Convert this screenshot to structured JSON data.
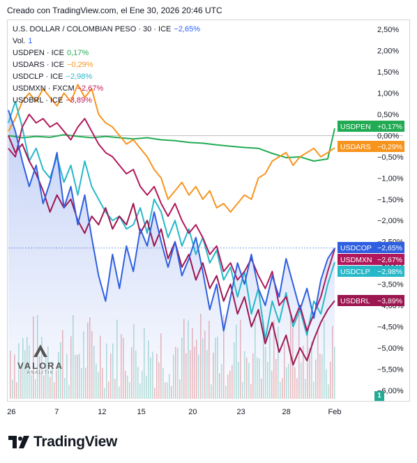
{
  "header": {
    "caption": "Creado con TradingView.com, el Ene 30, 2026 20:46 UTC"
  },
  "legend": {
    "main_symbol": "U.S. DOLLAR / COLOMBIAN PESO · 30 · ICE",
    "main_change": "−2,65%",
    "vol_label": "Vol.",
    "vol_value": "1",
    "rows": [
      {
        "symbol": "USDPEN · ICE",
        "change": "0,17%",
        "color": "#22ab53"
      },
      {
        "symbol": "USDARS · ICE",
        "change": "−0,29%",
        "color": "#f7941d"
      },
      {
        "symbol": "USDCLP · ICE",
        "change": "−2,98%",
        "color": "#26b8c9"
      },
      {
        "symbol": "USDMXN · FXCM",
        "change": "−2,67%",
        "color": "#c2185b"
      },
      {
        "symbol": "USDBRL · ICE",
        "change": "−3,89%",
        "color": "#c2185b"
      }
    ]
  },
  "watermark": {
    "name": "VALORA",
    "sub": "ANALITIK"
  },
  "footer": {
    "brand": "TradingView"
  },
  "volume_badge": "1",
  "chart_data": {
    "type": "line",
    "x_ticks": [
      "26",
      "7",
      "12",
      "15",
      "20",
      "23",
      "28",
      "Feb"
    ],
    "y_ticks": [
      "2,50%",
      "2,00%",
      "1,50%",
      "1,00%",
      "0,50%",
      "0,00%",
      "−0,50%",
      "−1,00%",
      "−1,50%",
      "−2,00%",
      "−2,50%",
      "−3,00%",
      "−3,50%",
      "−4,00%",
      "−4,50%",
      "−5,00%",
      "−5,50%",
      "−6,00%"
    ],
    "ylim": [
      -6.2,
      2.7
    ],
    "x_range": [
      0,
      47
    ],
    "grid": false,
    "legend_position": "top-left",
    "series": [
      {
        "name": "USDPEN",
        "color": "#22ab53",
        "label": "USDPEN",
        "label_value": "+0,17%",
        "x": [
          0,
          2,
          4,
          6,
          8,
          10,
          12,
          14,
          16,
          18,
          20,
          22,
          24,
          26,
          28,
          30,
          32,
          34,
          36,
          38,
          40,
          42,
          44,
          46,
          47
        ],
        "y": [
          0.0,
          -0.05,
          -0.02,
          -0.04,
          0.02,
          -0.02,
          -0.05,
          -0.02,
          -0.05,
          -0.08,
          -0.05,
          -0.1,
          -0.12,
          -0.16,
          -0.18,
          -0.22,
          -0.25,
          -0.28,
          -0.3,
          -0.42,
          -0.52,
          -0.5,
          -0.6,
          -0.55,
          0.17
        ]
      },
      {
        "name": "USDARS",
        "color": "#f7941d",
        "label": "USDARS",
        "label_value": "−0,29%",
        "x": [
          0,
          1,
          2,
          3,
          4,
          5,
          6,
          7,
          8,
          9,
          10,
          11,
          12,
          13,
          14,
          15,
          16,
          17,
          18,
          19,
          20,
          21,
          22,
          23,
          24,
          25,
          26,
          27,
          28,
          29,
          30,
          31,
          32,
          33,
          34,
          35,
          36,
          37,
          38,
          39,
          40,
          41,
          42,
          43,
          44,
          45,
          46,
          47
        ],
        "y": [
          0.1,
          0.4,
          0.8,
          1.0,
          0.8,
          1.1,
          0.9,
          0.7,
          1.0,
          0.8,
          1.2,
          0.9,
          1.1,
          0.5,
          0.3,
          0.2,
          0.0,
          -0.2,
          -0.1,
          -0.3,
          -0.5,
          -0.8,
          -1.0,
          -1.5,
          -1.3,
          -1.1,
          -1.4,
          -1.2,
          -1.5,
          -1.3,
          -1.7,
          -1.6,
          -1.8,
          -1.6,
          -1.4,
          -1.5,
          -1.0,
          -0.9,
          -0.6,
          -0.5,
          -0.4,
          -0.7,
          -0.5,
          -0.4,
          -0.3,
          -0.5,
          -0.4,
          -0.29
        ]
      },
      {
        "name": "USDCLP",
        "color": "#26b8c9",
        "label": "USDCLP",
        "label_value": "−2,98%",
        "x": [
          0,
          1,
          2,
          3,
          4,
          5,
          6,
          7,
          8,
          9,
          10,
          11,
          12,
          13,
          14,
          15,
          16,
          17,
          18,
          19,
          20,
          21,
          22,
          23,
          24,
          25,
          26,
          27,
          28,
          29,
          30,
          31,
          32,
          33,
          34,
          35,
          36,
          37,
          38,
          39,
          40,
          41,
          42,
          43,
          44,
          45,
          46,
          47
        ],
        "y": [
          0.3,
          0.8,
          0.2,
          -0.6,
          -0.3,
          -0.8,
          -1.0,
          -0.5,
          -1.1,
          -0.7,
          -1.4,
          -0.6,
          -1.2,
          -1.5,
          -1.8,
          -2.0,
          -1.9,
          -2.2,
          -2.1,
          -1.7,
          -2.3,
          -1.5,
          -1.8,
          -2.4,
          -2.0,
          -2.6,
          -2.2,
          -2.8,
          -2.4,
          -3.0,
          -2.7,
          -3.4,
          -3.1,
          -3.8,
          -3.2,
          -4.2,
          -3.6,
          -4.8,
          -3.9,
          -4.4,
          -3.7,
          -4.5,
          -4.1,
          -4.7,
          -3.9,
          -4.2,
          -3.5,
          -2.98
        ]
      },
      {
        "name": "USDMXN",
        "color": "#b0185b",
        "label": "USDMXN",
        "label_value": "−2,67%",
        "x": [
          0,
          1,
          2,
          3,
          4,
          5,
          6,
          7,
          8,
          9,
          10,
          11,
          12,
          13,
          14,
          15,
          16,
          17,
          18,
          19,
          20,
          21,
          22,
          23,
          24,
          25,
          26,
          27,
          28,
          29,
          30,
          31,
          32,
          33,
          34,
          35,
          36,
          37,
          38,
          39,
          40,
          41,
          42,
          43,
          44,
          45,
          46,
          47
        ],
        "y": [
          -0.3,
          -0.5,
          0.2,
          0.5,
          0.3,
          0.4,
          0.2,
          0.3,
          0.1,
          -0.1,
          0.2,
          0.4,
          0.1,
          -0.2,
          -0.4,
          -0.5,
          -0.7,
          -0.9,
          -0.8,
          -1.2,
          -1.4,
          -1.2,
          -1.6,
          -1.9,
          -1.6,
          -2.0,
          -2.3,
          -2.1,
          -2.4,
          -2.8,
          -2.6,
          -3.2,
          -3.0,
          -3.4,
          -3.2,
          -2.9,
          -3.3,
          -3.6,
          -3.2,
          -4.0,
          -3.8,
          -4.4,
          -4.0,
          -4.6,
          -4.2,
          -3.8,
          -3.2,
          -2.67
        ]
      },
      {
        "name": "USDBRL",
        "color": "#9c1650",
        "label": "USDBRL",
        "label_value": "−3,89%",
        "x": [
          0,
          1,
          2,
          3,
          4,
          5,
          6,
          7,
          8,
          9,
          10,
          11,
          12,
          13,
          14,
          15,
          16,
          17,
          18,
          19,
          20,
          21,
          22,
          23,
          24,
          25,
          26,
          27,
          28,
          29,
          30,
          31,
          32,
          33,
          34,
          35,
          36,
          37,
          38,
          39,
          40,
          41,
          42,
          43,
          44,
          45,
          46,
          47
        ],
        "y": [
          0.0,
          -0.4,
          -0.2,
          -0.6,
          -0.9,
          -1.3,
          -1.8,
          -1.4,
          -1.7,
          -1.5,
          -2.0,
          -2.3,
          -1.9,
          -2.1,
          -1.7,
          -2.2,
          -1.9,
          -2.1,
          -1.6,
          -2.3,
          -2.0,
          -2.6,
          -2.2,
          -2.9,
          -2.5,
          -3.1,
          -2.8,
          -3.4,
          -3.0,
          -3.6,
          -3.3,
          -3.9,
          -3.5,
          -4.2,
          -3.8,
          -4.5,
          -4.1,
          -4.9,
          -4.4,
          -5.1,
          -4.7,
          -5.4,
          -5.0,
          -5.3,
          -4.8,
          -4.4,
          -4.1,
          -3.89
        ]
      },
      {
        "name": "USDCOP",
        "color": "#2e5fe0",
        "label": "USDCOP",
        "label_value": "−2,65%",
        "x": [
          0,
          1,
          2,
          3,
          4,
          5,
          6,
          7,
          8,
          9,
          10,
          11,
          12,
          13,
          14,
          15,
          16,
          17,
          18,
          19,
          20,
          21,
          22,
          23,
          24,
          25,
          26,
          27,
          28,
          29,
          30,
          31,
          32,
          33,
          34,
          35,
          36,
          37,
          38,
          39,
          40,
          41,
          42,
          43,
          44,
          45,
          46,
          47
        ],
        "y": [
          0.6,
          0.1,
          -0.6,
          -1.2,
          -0.7,
          -1.6,
          -1.1,
          -0.4,
          -1.7,
          -1.2,
          -2.1,
          -1.4,
          -2.4,
          -3.3,
          -3.9,
          -2.8,
          -3.6,
          -2.6,
          -3.2,
          -2.2,
          -2.6,
          -1.8,
          -2.5,
          -3.1,
          -2.5,
          -3.3,
          -2.9,
          -2.4,
          -3.2,
          -4.1,
          -3.5,
          -4.6,
          -3.8,
          -3.0,
          -3.5,
          -2.8,
          -3.6,
          -4.0,
          -3.3,
          -3.8,
          -2.9,
          -3.5,
          -4.1,
          -3.6,
          -4.3,
          -3.4,
          -2.9,
          -2.65
        ]
      }
    ]
  }
}
